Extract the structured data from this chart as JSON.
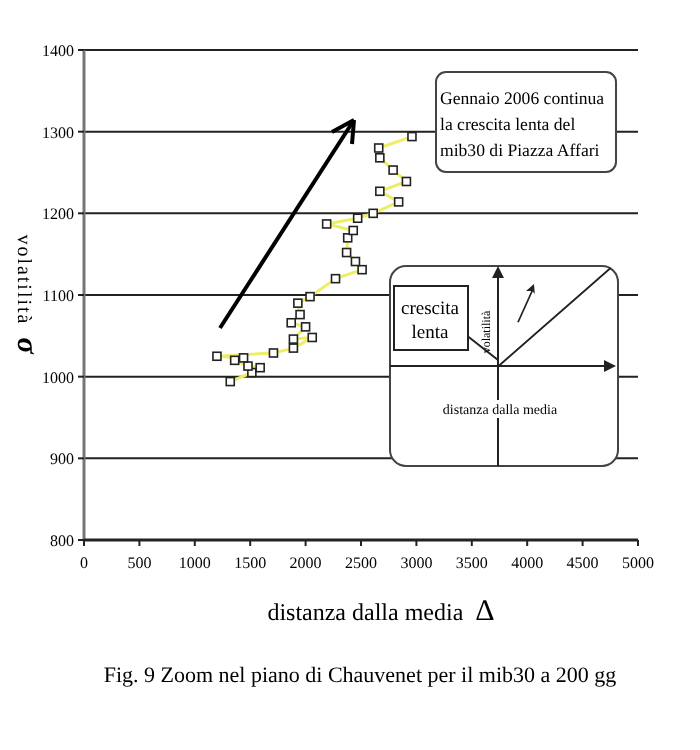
{
  "chart_data": {
    "type": "line",
    "xlabel": "distanza dalla media Δ",
    "ylabel": "volatilità σ",
    "xlim": [
      0,
      5000
    ],
    "ylim": [
      800,
      1400
    ],
    "xticks": [
      0,
      500,
      1000,
      1500,
      2000,
      2500,
      3000,
      3500,
      4000,
      4500,
      5000
    ],
    "yticks": [
      800,
      900,
      1000,
      1100,
      1200,
      1300,
      1400
    ],
    "grid": "y",
    "marker": "square",
    "line_style": "solid",
    "series": [
      {
        "color": "#eeee66",
        "x": [
          1320,
          1515,
          1590,
          1480,
          1360,
          1440,
          1200,
          1710,
          1890,
          2060,
          1890,
          2000,
          1870,
          1950,
          1930,
          2040,
          2270,
          2510,
          2450,
          2370,
          2380,
          2430,
          2190,
          2470,
          2610,
          2840,
          2670,
          2910,
          2790,
          2670,
          2660,
          2960
        ],
        "values": [
          994,
          1005,
          1011,
          1013,
          1020,
          1023,
          1025,
          1029,
          1035,
          1048,
          1046,
          1061,
          1066,
          1076,
          1090,
          1098,
          1120,
          1131,
          1141,
          1152,
          1170,
          1179,
          1187,
          1194,
          1200,
          1214,
          1227,
          1239,
          1253,
          1268,
          1280,
          1294
        ]
      }
    ],
    "annotations": [
      "Gennaio 2006 continua la crescita lenta del mib30 di Piazza Affari",
      "crescita lenta",
      "volatilità",
      "distanza dalla media",
      "Fig. 9 Zoom nel piano di Chauvenet per il mib30 a 200 gg"
    ]
  }
}
